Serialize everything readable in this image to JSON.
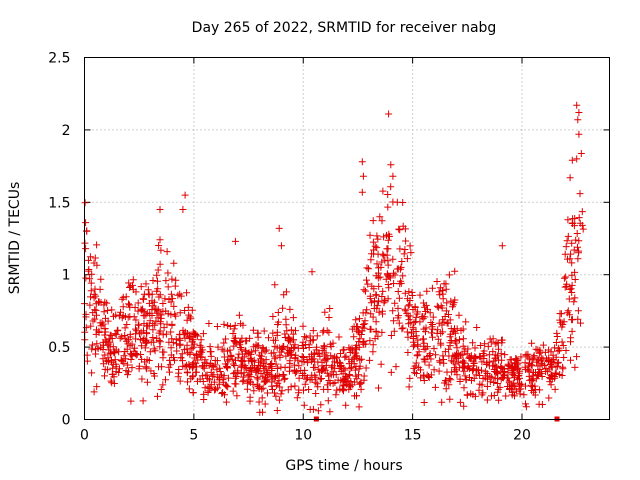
{
  "chart_data": {
    "type": "scatter",
    "title": "Day 265 of 2022, SRMTID for receiver nabg",
    "xlabel": "GPS time / hours",
    "ylabel": "SRMTID / TECUs",
    "xlim": [
      0,
      24
    ],
    "ylim": [
      0,
      2.5
    ],
    "xticks": [
      0,
      5,
      10,
      15,
      20
    ],
    "yticks": [
      0,
      0.5,
      1,
      1.5,
      2,
      2.5
    ],
    "xtick_labels": [
      "0",
      "5",
      "10",
      "15",
      "20"
    ],
    "ytick_labels": [
      "0",
      "0.5",
      "1",
      "1.5",
      "2",
      "2.5"
    ],
    "grid": true,
    "marker": "+",
    "color": "#e00000",
    "series": [
      {
        "name": "SRMTID",
        "profile": [
          [
            0.0,
            0.95,
            0.28
          ],
          [
            0.5,
            0.7,
            0.22
          ],
          [
            1.0,
            0.5,
            0.16
          ],
          [
            1.5,
            0.45,
            0.14
          ],
          [
            2.0,
            0.62,
            0.2
          ],
          [
            2.5,
            0.55,
            0.18
          ],
          [
            3.0,
            0.6,
            0.2
          ],
          [
            3.5,
            0.7,
            0.24
          ],
          [
            4.0,
            0.65,
            0.2
          ],
          [
            4.5,
            0.55,
            0.18
          ],
          [
            5.0,
            0.45,
            0.14
          ],
          [
            5.5,
            0.38,
            0.12
          ],
          [
            6.0,
            0.35,
            0.12
          ],
          [
            6.5,
            0.4,
            0.14
          ],
          [
            7.0,
            0.45,
            0.16
          ],
          [
            7.5,
            0.38,
            0.12
          ],
          [
            8.0,
            0.35,
            0.12
          ],
          [
            8.5,
            0.38,
            0.12
          ],
          [
            9.0,
            0.45,
            0.16
          ],
          [
            9.5,
            0.45,
            0.14
          ],
          [
            10.0,
            0.4,
            0.14
          ],
          [
            10.5,
            0.38,
            0.14
          ],
          [
            11.0,
            0.4,
            0.15
          ],
          [
            11.5,
            0.35,
            0.12
          ],
          [
            12.0,
            0.3,
            0.1
          ],
          [
            12.5,
            0.45,
            0.15
          ],
          [
            13.0,
            0.85,
            0.25
          ],
          [
            13.5,
            0.95,
            0.28
          ],
          [
            14.0,
            1.05,
            0.3
          ],
          [
            14.5,
            0.95,
            0.28
          ],
          [
            15.0,
            0.65,
            0.22
          ],
          [
            15.5,
            0.55,
            0.18
          ],
          [
            16.0,
            0.62,
            0.2
          ],
          [
            16.5,
            0.6,
            0.2
          ],
          [
            17.0,
            0.5,
            0.16
          ],
          [
            17.5,
            0.4,
            0.14
          ],
          [
            18.0,
            0.38,
            0.12
          ],
          [
            18.5,
            0.35,
            0.12
          ],
          [
            19.0,
            0.4,
            0.14
          ],
          [
            19.5,
            0.3,
            0.08
          ],
          [
            20.0,
            0.3,
            0.08
          ],
          [
            20.5,
            0.35,
            0.12
          ],
          [
            21.0,
            0.35,
            0.1
          ],
          [
            21.5,
            0.35,
            0.1
          ],
          [
            22.0,
            0.8,
            0.25
          ],
          [
            22.5,
            1.05,
            0.35
          ],
          [
            22.8,
            1.3,
            0.4
          ]
        ],
        "n_points": 1750,
        "x_range": [
          0.0,
          22.8
        ],
        "outliers": [
          [
            0.05,
            1.36
          ],
          [
            0.1,
            1.3
          ],
          [
            3.45,
            1.45
          ],
          [
            4.6,
            1.55
          ],
          [
            4.5,
            1.45
          ],
          [
            8.9,
            1.32
          ],
          [
            9.0,
            1.2
          ],
          [
            12.7,
            1.78
          ],
          [
            12.75,
            1.68
          ],
          [
            12.7,
            1.57
          ],
          [
            13.9,
            2.11
          ],
          [
            14.0,
            1.76
          ],
          [
            14.1,
            1.68
          ],
          [
            14.3,
            1.5
          ],
          [
            13.5,
            1.4
          ],
          [
            19.1,
            1.2
          ],
          [
            22.5,
            2.17
          ],
          [
            22.6,
            2.12
          ],
          [
            22.55,
            2.07
          ],
          [
            22.6,
            1.97
          ],
          [
            22.5,
            1.8
          ],
          [
            22.3,
            1.79
          ],
          [
            22.2,
            1.67
          ],
          [
            22.65,
            1.56
          ],
          [
            22.1,
            1.38
          ],
          [
            6.9,
            1.23
          ],
          [
            10.4,
            1.02
          ],
          [
            8.7,
            0.93
          ],
          [
            0.05,
            1.18
          ]
        ]
      }
    ],
    "gap_markers": [
      10.6,
      21.6
    ]
  }
}
